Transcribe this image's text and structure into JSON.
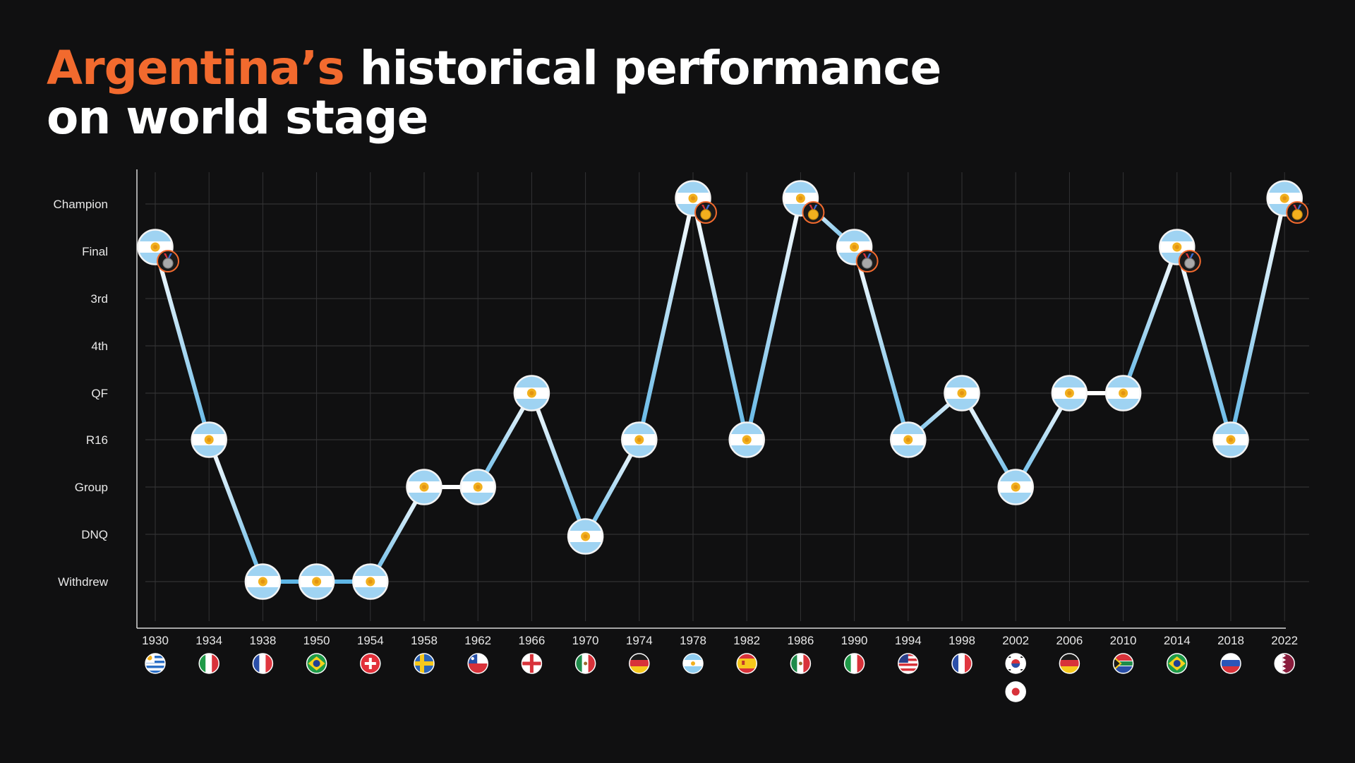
{
  "title": {
    "highlight": "Argentina’s",
    "rest_line1": " historical performance",
    "line2": "on world stage"
  },
  "colors": {
    "background": "#101011",
    "accent": "#f26a2e",
    "line_blue": "#5fb6e6",
    "line_white": "#ffffff",
    "gold": "#f2b01e",
    "silver": "#a9a9a9"
  },
  "chart_data": {
    "type": "line",
    "y_categories": [
      "Champion",
      "Final",
      "3rd",
      "4th",
      "QF",
      "R16",
      "Group",
      "DNQ",
      "Withdrew"
    ],
    "years": [
      "1930",
      "1934",
      "1938",
      "1950",
      "1954",
      "1958",
      "1962",
      "1966",
      "1970",
      "1974",
      "1978",
      "1982",
      "1986",
      "1990",
      "1994",
      "1998",
      "2002",
      "2006",
      "2010",
      "2014",
      "2018",
      "2022"
    ],
    "results": [
      "Final",
      "R16",
      "Withdrew",
      "Withdrew",
      "Withdrew",
      "Group",
      "Group",
      "QF",
      "DNQ",
      "R16",
      "Champion",
      "R16",
      "Champion",
      "Final",
      "R16",
      "QF",
      "Group",
      "QF",
      "QF",
      "Final",
      "R16",
      "Champion"
    ],
    "medals": [
      "silver",
      "",
      "",
      "",
      "",
      "",
      "",
      "",
      "",
      "",
      "gold",
      "",
      "gold",
      "silver",
      "",
      "",
      "",
      "",
      "",
      "silver",
      "",
      "gold"
    ],
    "hosts": [
      [
        "uruguay-flag"
      ],
      [
        "italy-flag"
      ],
      [
        "france-flag"
      ],
      [
        "brazil-flag"
      ],
      [
        "switzerland-flag"
      ],
      [
        "sweden-flag"
      ],
      [
        "chile-flag"
      ],
      [
        "england-flag"
      ],
      [
        "mexico-flag"
      ],
      [
        "germany-flag"
      ],
      [
        "argentina-flag"
      ],
      [
        "spain-flag"
      ],
      [
        "mexico-flag"
      ],
      [
        "italy-flag"
      ],
      [
        "usa-flag"
      ],
      [
        "france-flag"
      ],
      [
        "south-korea-flag",
        "japan-flag"
      ],
      [
        "germany-flag"
      ],
      [
        "south-africa-flag"
      ],
      [
        "brazil-flag"
      ],
      [
        "russia-flag"
      ],
      [
        "qatar-flag"
      ]
    ],
    "grid": true
  }
}
